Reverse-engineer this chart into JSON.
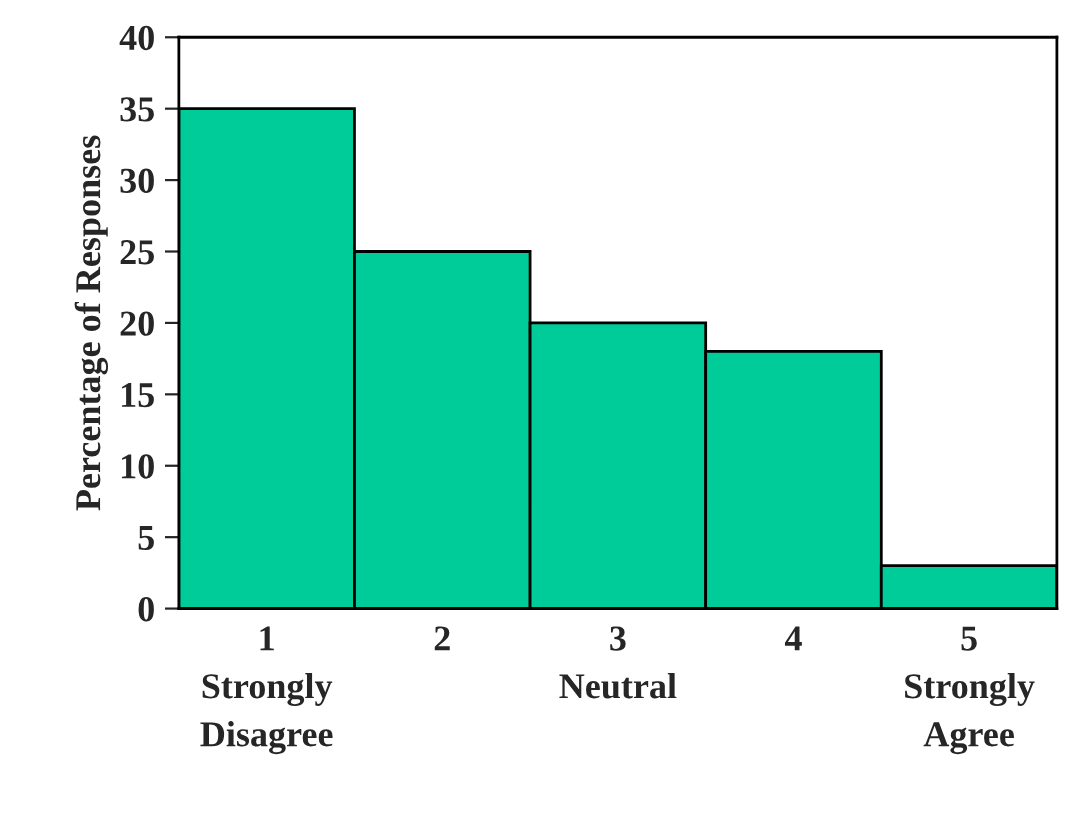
{
  "chart_data": {
    "type": "bar",
    "categories": [
      "1\nStrongly\nDisagree",
      "2",
      "3\nNeutral",
      "4",
      "5\nStrongly\nAgree"
    ],
    "values": [
      35,
      25,
      20,
      18,
      3
    ],
    "color": "#00cc99",
    "ylabel": "Percentage of Responses",
    "ylim": [
      0,
      40
    ],
    "yticks": [
      0,
      5,
      10,
      15,
      20,
      25,
      30,
      35,
      40
    ],
    "grid": false,
    "legend": false
  }
}
